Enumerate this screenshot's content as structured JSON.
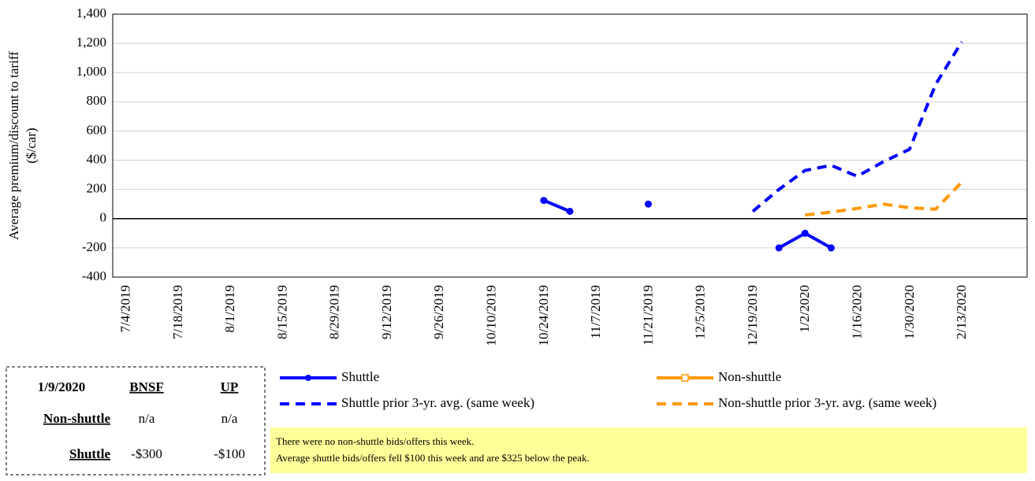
{
  "chart_data": {
    "type": "line",
    "y_label": [
      "Average premium/discount to tariff",
      "($/car)"
    ],
    "categories": [
      "7/4/2019",
      null,
      "7/18/2019",
      null,
      "8/1/2019",
      null,
      "8/15/2019",
      null,
      "8/29/2019",
      null,
      "9/12/2019",
      null,
      "9/26/2019",
      null,
      "10/10/2019",
      null,
      "10/24/2019",
      null,
      "11/7/2019",
      null,
      "11/21/2019",
      null,
      "12/5/2019",
      null,
      "12/19/2019",
      null,
      "1/2/2020",
      null,
      "1/16/2020",
      null,
      "1/30/2020",
      null,
      "2/13/2020",
      null,
      null
    ],
    "ylim": [
      -400,
      1400
    ],
    "yticks": [
      -400,
      -200,
      0,
      200,
      400,
      600,
      800,
      {
        "value": 1000,
        "label": "1,000"
      },
      {
        "value": 1200,
        "label": "1,200"
      },
      {
        "value": 1400,
        "label": "1,400"
      }
    ],
    "grid": true,
    "series": [
      {
        "name": "Shuttle",
        "color": "#0000ff",
        "style": "solid",
        "marker": "circle",
        "values": [
          null,
          null,
          null,
          null,
          null,
          null,
          null,
          null,
          null,
          null,
          null,
          null,
          null,
          null,
          null,
          null,
          125,
          50,
          null,
          null,
          100,
          null,
          null,
          null,
          null,
          -200,
          -100,
          -200,
          null,
          null,
          null,
          null,
          null,
          null,
          null
        ]
      },
      {
        "name": "Non-shuttle",
        "color": "#ff9900",
        "style": "solid",
        "marker": "square",
        "values": [
          null,
          null,
          null,
          null,
          null,
          null,
          null,
          null,
          null,
          null,
          null,
          null,
          null,
          null,
          null,
          null,
          null,
          null,
          null,
          null,
          null,
          null,
          null,
          null,
          null,
          null,
          null,
          null,
          null,
          null,
          null,
          null,
          null,
          null,
          null
        ]
      },
      {
        "name": "Shuttle prior 3-yr. avg. (same week)",
        "color": "#0000ff",
        "style": "dashed",
        "marker": "none",
        "values": [
          null,
          null,
          null,
          null,
          null,
          null,
          null,
          null,
          null,
          null,
          null,
          null,
          null,
          null,
          null,
          null,
          null,
          null,
          null,
          null,
          null,
          null,
          null,
          null,
          50,
          200,
          330,
          365,
          290,
          390,
          475,
          920,
          1210,
          null,
          null
        ]
      },
      {
        "name": "Non-shuttle prior 3-yr. avg. (same week)",
        "color": "#ff9900",
        "style": "dashed",
        "marker": "none",
        "values": [
          null,
          null,
          null,
          null,
          null,
          null,
          null,
          null,
          null,
          null,
          null,
          null,
          null,
          null,
          null,
          null,
          null,
          null,
          null,
          null,
          null,
          null,
          null,
          null,
          null,
          null,
          25,
          45,
          70,
          100,
          75,
          65,
          250,
          null,
          null
        ]
      }
    ]
  },
  "table": {
    "header": [
      "1/9/2020",
      "BNSF",
      "UP"
    ],
    "rows": [
      [
        "Non-shuttle",
        "n/a",
        "n/a"
      ],
      [
        "Shuttle",
        "-$300",
        "-$100"
      ]
    ]
  },
  "notes": [
    "There were no non-shuttle bids/offers  this week.",
    "Average shuttle bids/offers  fell  $100 this week and are $325 below the peak."
  ]
}
